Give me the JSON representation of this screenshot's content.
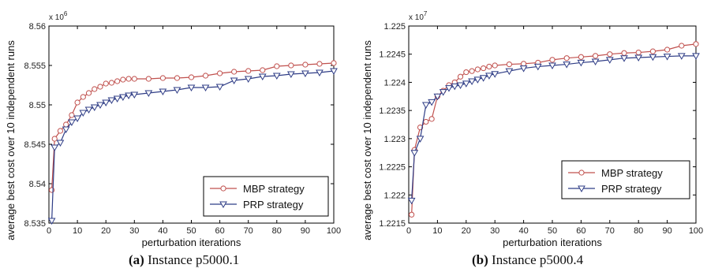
{
  "colors": {
    "mbp": "#c0504d",
    "prp": "#2f3d86",
    "axis": "#000000"
  },
  "markers": {
    "mbp": "circle",
    "prp": "triangle-down"
  },
  "chart_data": [
    {
      "type": "line",
      "caption_label": "(a)",
      "caption_text": "Instance p5000.1",
      "xlabel": "perturbation iterations",
      "ylabel": "average best cost over 10 independent runs",
      "y_exponent": "x 10",
      "y_exponent_power": "6",
      "xlim": [
        0,
        100
      ],
      "ylim": [
        8.535,
        8.56
      ],
      "xticks": [
        0,
        10,
        20,
        30,
        40,
        50,
        60,
        70,
        80,
        90,
        100
      ],
      "xtick_labels": [
        "0",
        "10",
        "20",
        "30",
        "40",
        "50",
        "60",
        "70",
        "80",
        "90",
        "100"
      ],
      "yticks": [
        8.535,
        8.54,
        8.545,
        8.55,
        8.555,
        8.56
      ],
      "ytick_labels": [
        "8.535",
        "8.54",
        "8.545",
        "8.55",
        "8.555",
        "8.56"
      ],
      "legend_position": "bottom-right",
      "series": [
        {
          "name": "MBP strategy",
          "key": "mbp",
          "x": [
            1,
            2,
            4,
            6,
            8,
            10,
            12,
            14,
            16,
            18,
            20,
            22,
            24,
            26,
            28,
            30,
            35,
            40,
            45,
            50,
            55,
            60,
            65,
            70,
            75,
            80,
            85,
            90,
            95,
            100
          ],
          "y": [
            8.5392,
            8.5457,
            8.5467,
            8.5475,
            8.5487,
            8.5503,
            8.551,
            8.5515,
            8.552,
            8.5523,
            8.5527,
            8.5528,
            8.553,
            8.5532,
            8.5533,
            8.5533,
            8.5533,
            8.5534,
            8.5534,
            8.5535,
            8.5537,
            8.554,
            8.5542,
            8.5543,
            8.5544,
            8.5549,
            8.555,
            8.5551,
            8.5552,
            8.5553
          ]
        },
        {
          "name": "PRP strategy",
          "key": "prp",
          "x": [
            1,
            2,
            4,
            6,
            8,
            10,
            12,
            14,
            16,
            18,
            20,
            22,
            24,
            26,
            28,
            30,
            35,
            40,
            45,
            50,
            55,
            60,
            65,
            70,
            75,
            80,
            85,
            90,
            95,
            100
          ],
          "y": [
            8.5353,
            8.5446,
            8.5452,
            8.5469,
            8.5478,
            8.5483,
            8.549,
            8.5494,
            8.5497,
            8.55,
            8.5503,
            8.5506,
            8.5508,
            8.551,
            8.5512,
            8.5513,
            8.5515,
            8.5517,
            8.5519,
            8.5522,
            8.5522,
            8.5523,
            8.5531,
            8.5533,
            8.5536,
            8.5537,
            8.5539,
            8.554,
            8.5541,
            8.5543
          ]
        }
      ]
    },
    {
      "type": "line",
      "caption_label": "(b)",
      "caption_text": "Instance p5000.4",
      "xlabel": "perturbation iterations",
      "ylabel": "average best cost over 10 independent runs",
      "y_exponent": "x 10",
      "y_exponent_power": "7",
      "xlim": [
        0,
        100
      ],
      "ylim": [
        1.2215,
        1.225
      ],
      "xticks": [
        0,
        10,
        20,
        30,
        40,
        50,
        60,
        70,
        80,
        90,
        100
      ],
      "xtick_labels": [
        "0",
        "10",
        "20",
        "30",
        "40",
        "50",
        "60",
        "70",
        "80",
        "90",
        "100"
      ],
      "yticks": [
        1.2215,
        1.222,
        1.2225,
        1.223,
        1.2235,
        1.224,
        1.2245,
        1.225
      ],
      "ytick_labels": [
        "1.2215",
        "1.222",
        "1.2225",
        "1.223",
        "1.2235",
        "1.224",
        "1.2245",
        "1.225"
      ],
      "legend_position": "bottom-right",
      "series": [
        {
          "name": "MBP strategy",
          "key": "mbp",
          "x": [
            1,
            2,
            4,
            6,
            8,
            10,
            12,
            14,
            16,
            18,
            20,
            22,
            24,
            26,
            28,
            30,
            35,
            40,
            45,
            50,
            55,
            60,
            65,
            70,
            75,
            80,
            85,
            90,
            95,
            100
          ],
          "y": [
            1.22165,
            1.2228,
            1.2232,
            1.2233,
            1.22335,
            1.22375,
            1.22385,
            1.22395,
            1.224,
            1.2241,
            1.22418,
            1.2242,
            1.22423,
            1.22425,
            1.22428,
            1.2243,
            1.22432,
            1.22433,
            1.22435,
            1.2244,
            1.22443,
            1.22445,
            1.22447,
            1.2245,
            1.22452,
            1.22453,
            1.22455,
            1.22458,
            1.22465,
            1.22468
          ]
        },
        {
          "name": "PRP strategy",
          "key": "prp",
          "x": [
            1,
            2,
            4,
            6,
            8,
            10,
            12,
            14,
            16,
            18,
            20,
            22,
            24,
            26,
            28,
            30,
            35,
            40,
            45,
            50,
            55,
            60,
            65,
            70,
            75,
            80,
            85,
            90,
            95,
            100
          ],
          "y": [
            1.2219,
            1.22275,
            1.223,
            1.2236,
            1.22365,
            1.22375,
            1.22383,
            1.2239,
            1.22393,
            1.22395,
            1.22398,
            1.22402,
            1.22405,
            1.22408,
            1.22412,
            1.22415,
            1.2242,
            1.22425,
            1.22428,
            1.2243,
            1.22432,
            1.22435,
            1.22437,
            1.2244,
            1.22443,
            1.22444,
            1.22445,
            1.22446,
            1.22447,
            1.22447
          ]
        }
      ]
    }
  ]
}
